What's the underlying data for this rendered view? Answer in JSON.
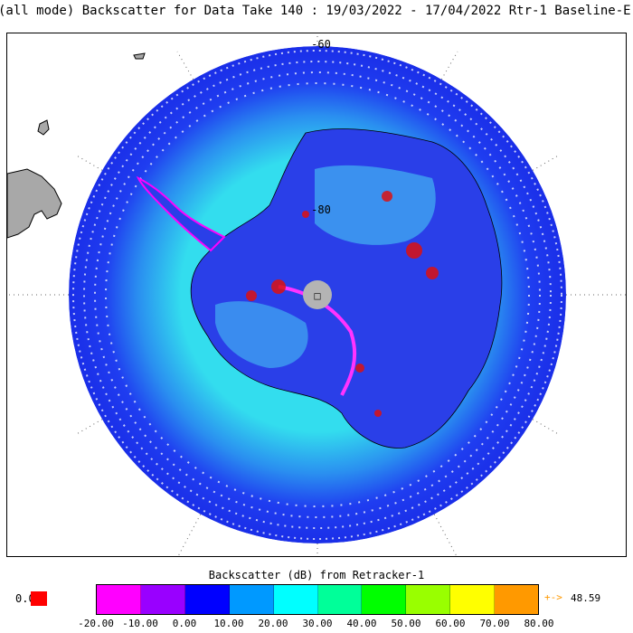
{
  "title": "(all mode) Backscatter for Data Take 140 : 19/03/2022 - 17/04/2022 Rtr-1 Baseline-E",
  "map": {
    "lat_labels": [
      "-60",
      "-80"
    ],
    "pole_marker": "□"
  },
  "colorbar": {
    "title": "Backscatter (dB) from Retracker-1",
    "ticks": [
      "-20.00",
      "-10.00",
      "0.00",
      "10.00",
      "20.00",
      "30.00",
      "40.00",
      "50.00",
      "60.00",
      "70.00",
      "80.00"
    ],
    "colors": [
      "#ff00ff",
      "#9900ff",
      "#0000ff",
      "#0099ff",
      "#00ffff",
      "#00ff99",
      "#00ff00",
      "#99ff00",
      "#ffff00",
      "#ff9900"
    ],
    "under_value": "0.0",
    "under_color": "#ff0000",
    "over_arrow": "+->",
    "over_value": "48.59",
    "over_color": "#ff9900"
  }
}
